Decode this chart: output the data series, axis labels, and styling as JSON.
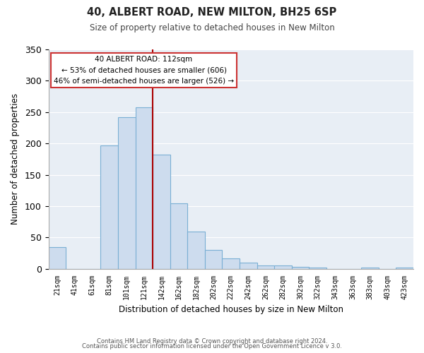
{
  "title": "40, ALBERT ROAD, NEW MILTON, BH25 6SP",
  "subtitle": "Size of property relative to detached houses in New Milton",
  "xlabel": "Distribution of detached houses by size in New Milton",
  "ylabel": "Number of detached properties",
  "bar_labels": [
    "21sqm",
    "41sqm",
    "61sqm",
    "81sqm",
    "101sqm",
    "121sqm",
    "142sqm",
    "162sqm",
    "182sqm",
    "202sqm",
    "222sqm",
    "242sqm",
    "262sqm",
    "282sqm",
    "302sqm",
    "322sqm",
    "343sqm",
    "363sqm",
    "383sqm",
    "403sqm",
    "423sqm"
  ],
  "bar_values": [
    35,
    0,
    0,
    197,
    242,
    258,
    182,
    105,
    60,
    30,
    17,
    10,
    5,
    5,
    3,
    2,
    0,
    0,
    2,
    0,
    2
  ],
  "bar_color": "#cddcee",
  "bar_edge_color": "#7aafd4",
  "vline_x": 5.5,
  "vline_color": "#aa0000",
  "ylim": [
    0,
    350
  ],
  "yticks": [
    0,
    50,
    100,
    150,
    200,
    250,
    300,
    350
  ],
  "annotation_title": "40 ALBERT ROAD: 112sqm",
  "annotation_line1": "← 53% of detached houses are smaller (606)",
  "annotation_line2": "46% of semi-detached houses are larger (526) →",
  "footer1": "Contains HM Land Registry data © Crown copyright and database right 2024.",
  "footer2": "Contains public sector information licensed under the Open Government Licence v 3.0.",
  "plot_bg_color": "#e8eef5",
  "fig_bg_color": "#ffffff",
  "grid_color": "#ffffff"
}
